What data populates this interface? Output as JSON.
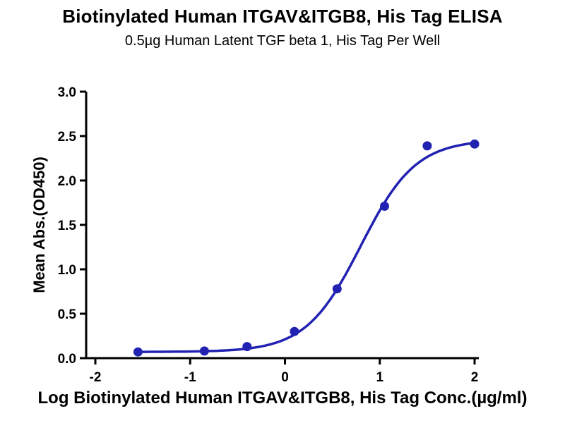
{
  "title": "Biotinylated Human ITGAV&ITGB8, His Tag ELISA",
  "subtitle": "0.5µg Human Latent TGF beta 1, His Tag Per Well",
  "chart_data": {
    "type": "scatter",
    "title": "Biotinylated Human ITGAV&ITGB8, His Tag ELISA",
    "subtitle": "0.5µg Human Latent TGF beta 1, His Tag Per Well",
    "xlabel": "Log Biotinylated Human ITGAV&ITGB8, His Tag Conc.(µg/ml)",
    "ylabel": "Mean Abs.(OD450)",
    "xlim": [
      -2,
      2
    ],
    "ylim": [
      0,
      3
    ],
    "xticks": [
      "-2",
      "-1",
      "0",
      "1",
      "2"
    ],
    "yticks": [
      "0.0",
      "0.5",
      "1.0",
      "1.5",
      "2.0",
      "2.5",
      "3.0"
    ],
    "grid": false,
    "legend": null,
    "color": "#2222B2",
    "axis_color": "#000000",
    "points": [
      {
        "x": -1.55,
        "y": 0.07
      },
      {
        "x": -0.85,
        "y": 0.08
      },
      {
        "x": -0.4,
        "y": 0.13
      },
      {
        "x": 0.1,
        "y": 0.3
      },
      {
        "x": 0.55,
        "y": 0.78
      },
      {
        "x": 1.05,
        "y": 1.71
      },
      {
        "x": 1.5,
        "y": 2.39
      },
      {
        "x": 2.0,
        "y": 2.41
      }
    ],
    "fit_curve": {
      "type": "4PL",
      "bottom": 0.07,
      "top": 2.46,
      "log_ec50": 0.8,
      "hill_slope": 1.5,
      "x_start": -1.55,
      "x_end": 2.0
    }
  }
}
